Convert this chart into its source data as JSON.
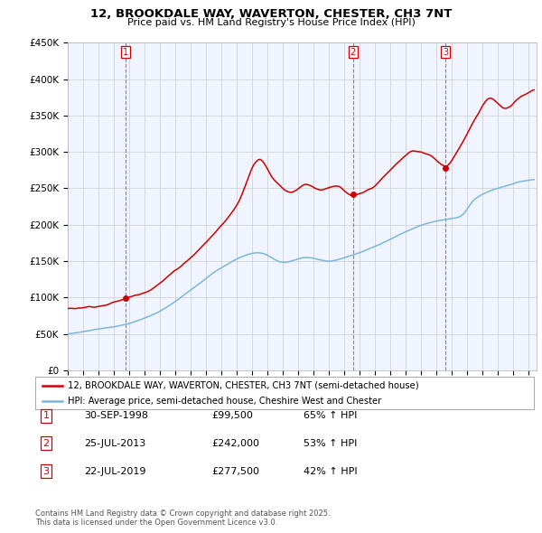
{
  "title": "12, BROOKDALE WAY, WAVERTON, CHESTER, CH3 7NT",
  "subtitle": "Price paid vs. HM Land Registry's House Price Index (HPI)",
  "red_label": "12, BROOKDALE WAY, WAVERTON, CHESTER, CH3 7NT (semi-detached house)",
  "blue_label": "HPI: Average price, semi-detached house, Cheshire West and Chester",
  "footer": "Contains HM Land Registry data © Crown copyright and database right 2025.\nThis data is licensed under the Open Government Licence v3.0.",
  "transactions": [
    {
      "num": 1,
      "date": "30-SEP-1998",
      "price": "£99,500",
      "hpi": "65% ↑ HPI",
      "year": 1998.75,
      "price_val": 99500
    },
    {
      "num": 2,
      "date": "25-JUL-2013",
      "price": "£242,000",
      "hpi": "53% ↑ HPI",
      "year": 2013.56,
      "price_val": 242000
    },
    {
      "num": 3,
      "date": "22-JUL-2019",
      "price": "£277,500",
      "hpi": "42% ↑ HPI",
      "year": 2019.56,
      "price_val": 277500
    }
  ],
  "ylim": [
    0,
    450000
  ],
  "yticks": [
    0,
    50000,
    100000,
    150000,
    200000,
    250000,
    300000,
    350000,
    400000,
    450000
  ],
  "ytick_labels": [
    "£0",
    "£50K",
    "£100K",
    "£150K",
    "£200K",
    "£250K",
    "£300K",
    "£350K",
    "£400K",
    "£450K"
  ],
  "red_color": "#cc0000",
  "blue_color": "#7ab8d9",
  "vline_color": "#cc0000",
  "grid_color": "#cccccc",
  "bg_color": "#ffffff",
  "plot_bg_color": "#f0f4ff",
  "xlim_left": 1995.0,
  "xlim_right": 2025.5
}
